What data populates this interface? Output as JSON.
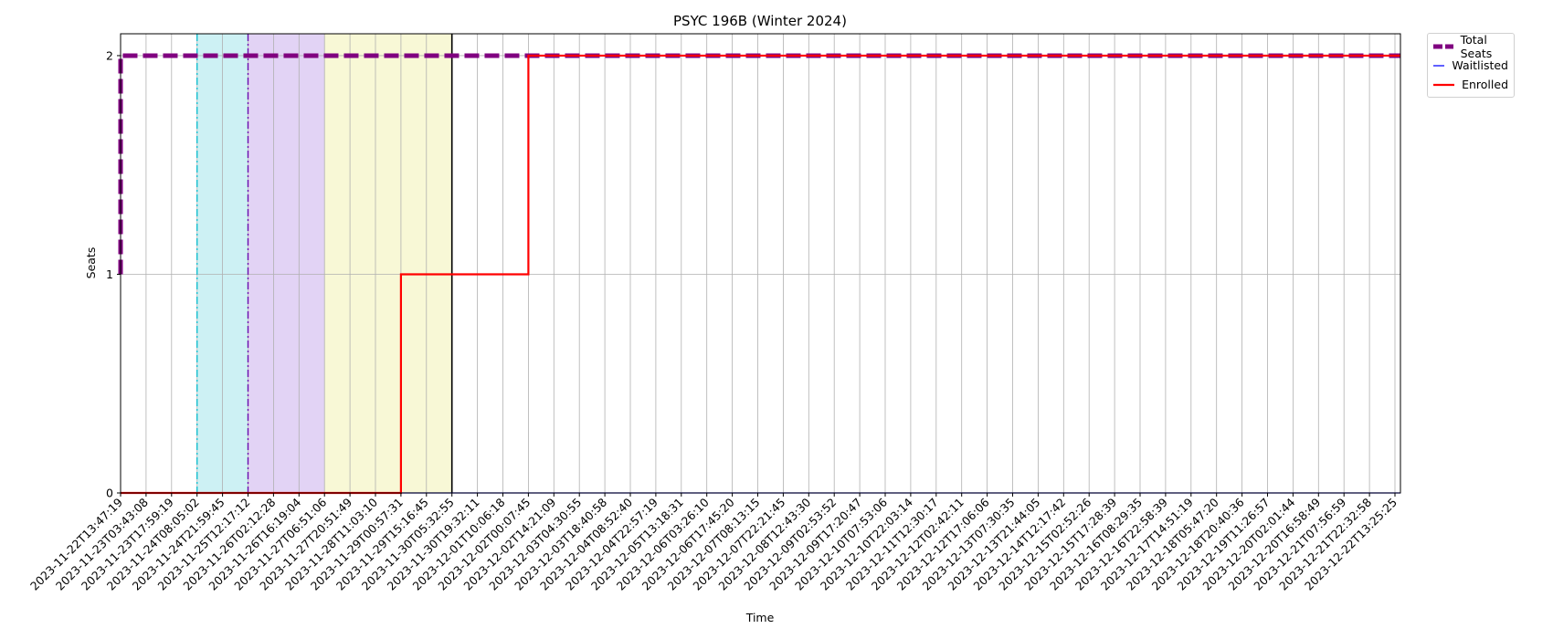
{
  "chart_data": {
    "type": "line",
    "title": "PSYC 196B (Winter 2024)",
    "xlabel": "Time",
    "ylabel": "Seats",
    "ylim": [
      0,
      2.1
    ],
    "yticks": [
      0,
      1,
      2
    ],
    "grid": true,
    "legend_placement": "outside-top-right",
    "x": [
      "2023-11-22T13:47:19",
      "2023-11-23T03:43:08",
      "2023-11-23T17:59:19",
      "2023-11-24T08:05:02",
      "2023-11-24T21:59:45",
      "2023-11-25T12:17:12",
      "2023-11-26T02:12:28",
      "2023-11-26T16:19:04",
      "2023-11-27T06:51:06",
      "2023-11-27T20:51:49",
      "2023-11-28T11:03:10",
      "2023-11-29T00:57:31",
      "2023-11-29T15:16:45",
      "2023-11-30T05:32:55",
      "2023-11-30T19:32:11",
      "2023-12-01T10:06:18",
      "2023-12-02T00:07:45",
      "2023-12-02T14:21:09",
      "2023-12-03T04:30:55",
      "2023-12-03T18:40:58",
      "2023-12-04T08:52:40",
      "2023-12-04T22:57:19",
      "2023-12-05T13:18:31",
      "2023-12-06T03:26:10",
      "2023-12-06T17:45:20",
      "2023-12-07T08:13:15",
      "2023-12-07T22:21:45",
      "2023-12-08T12:43:30",
      "2023-12-09T02:53:52",
      "2023-12-09T17:20:47",
      "2023-12-10T07:53:06",
      "2023-12-10T22:03:14",
      "2023-12-11T12:30:17",
      "2023-12-12T02:42:11",
      "2023-12-12T17:06:06",
      "2023-12-13T07:30:35",
      "2023-12-13T21:44:05",
      "2023-12-14T12:17:42",
      "2023-12-15T02:52:26",
      "2023-12-15T17:28:39",
      "2023-12-16T08:29:35",
      "2023-12-16T22:58:39",
      "2023-12-17T14:51:19",
      "2023-12-18T05:47:20",
      "2023-12-18T20:40:36",
      "2023-12-19T11:26:57",
      "2023-12-20T02:01:44",
      "2023-12-20T16:58:49",
      "2023-12-21T07:56:59",
      "2023-12-21T22:32:58",
      "2023-12-22T13:25:25"
    ],
    "series": [
      {
        "name": "Total Seats",
        "color": "#800080",
        "style": "dashed",
        "values": [
          2,
          2,
          2,
          2,
          2,
          2,
          2,
          2,
          2,
          2,
          2,
          2,
          2,
          2,
          2,
          2,
          2,
          2,
          2,
          2,
          2,
          2,
          2,
          2,
          2,
          2,
          2,
          2,
          2,
          2,
          2,
          2,
          2,
          2,
          2,
          2,
          2,
          2,
          2,
          2,
          2,
          2,
          2,
          2,
          2,
          2,
          2,
          2,
          2,
          2,
          2
        ]
      },
      {
        "name": "Waitlisted",
        "color": "#0000ff",
        "style": "solid",
        "values": [
          0,
          0,
          0,
          0,
          0,
          0,
          0,
          0,
          0,
          0,
          0,
          0,
          0,
          0,
          0,
          0,
          0,
          0,
          0,
          0,
          0,
          0,
          0,
          0,
          0,
          0,
          0,
          0,
          0,
          0,
          0,
          0,
          0,
          0,
          0,
          0,
          0,
          0,
          0,
          0,
          0,
          0,
          0,
          0,
          0,
          0,
          0,
          0,
          0,
          0,
          0
        ]
      },
      {
        "name": "Enrolled",
        "color": "#ff0000",
        "style": "solid",
        "values": [
          0,
          0,
          0,
          0,
          0,
          0,
          0,
          0,
          0,
          0,
          0,
          1,
          1,
          1,
          1,
          1,
          2,
          2,
          2,
          2,
          2,
          2,
          2,
          2,
          2,
          2,
          2,
          2,
          2,
          2,
          2,
          2,
          2,
          2,
          2,
          2,
          2,
          2,
          2,
          2,
          2,
          2,
          2,
          2,
          2,
          2,
          2,
          2,
          2,
          2,
          2
        ]
      }
    ],
    "shaded_regions": [
      {
        "from": "2023-11-24T08:05:02",
        "to": "2023-11-25T12:17:12",
        "color": "#cdf1f4"
      },
      {
        "from": "2023-11-25T12:17:12",
        "to": "2023-11-27T06:51:06",
        "color": "#e2d3f5"
      },
      {
        "from": "2023-11-27T06:51:06",
        "to": "2023-11-30T05:32:55",
        "color": "#f8f8d6"
      }
    ],
    "vertical_markers": [
      {
        "at": "2023-11-24T08:05:02",
        "color": "#17becf",
        "style": "dashdot"
      },
      {
        "at": "2023-11-25T12:17:12",
        "color": "#6a0dad",
        "style": "dashdot"
      },
      {
        "at": "2023-11-30T05:32:55",
        "color": "#000000",
        "style": "solid"
      }
    ]
  }
}
